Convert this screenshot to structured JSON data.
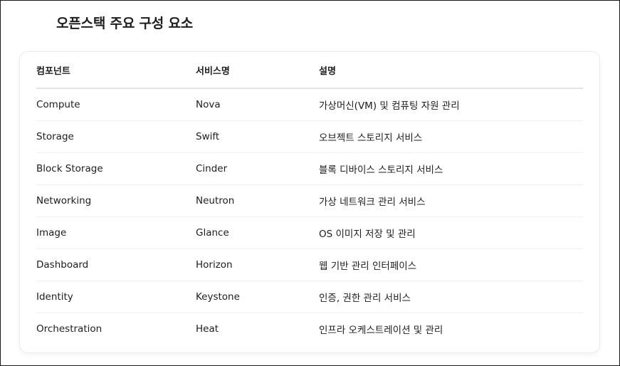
{
  "page": {
    "title": "오픈스택 주요 구성 요소"
  },
  "table": {
    "headers": [
      "컴포넌트",
      "서비스명",
      "설명"
    ],
    "rows": [
      [
        "Compute",
        "Nova",
        "가상머신(VM) 및 컴퓨팅 자원 관리"
      ],
      [
        "Storage",
        "Swift",
        "오브젝트 스토리지 서비스"
      ],
      [
        "Block Storage",
        "Cinder",
        "블록 디바이스 스토리지 서비스"
      ],
      [
        "Networking",
        "Neutron",
        "가상 네트워크 관리 서비스"
      ],
      [
        "Image",
        "Glance",
        "OS 이미지 저장 및 관리"
      ],
      [
        "Dashboard",
        "Horizon",
        "웹 기반 관리 인터페이스"
      ],
      [
        "Identity",
        "Keystone",
        "인증, 권한 관리 서비스"
      ],
      [
        "Orchestration",
        "Heat",
        "인프라 오케스트레이션 및 관리"
      ]
    ]
  },
  "colors": {
    "text": "#1d1d1f",
    "border": "#e3e3e3",
    "card_background": "#ffffff"
  }
}
